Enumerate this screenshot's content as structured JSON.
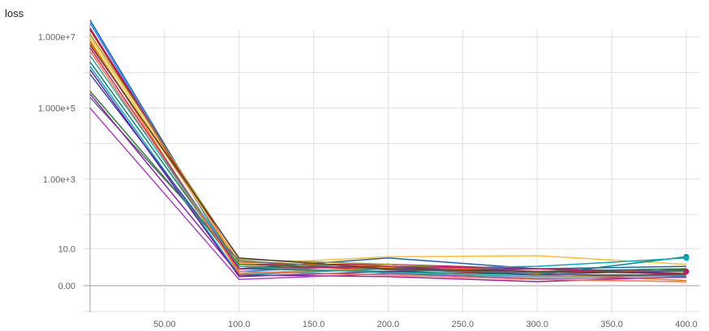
{
  "chart_data": {
    "type": "line",
    "title": "loss",
    "xlabel": "",
    "ylabel": "",
    "xlim": [
      0,
      410
    ],
    "x_ticks": [
      "50.00",
      "100.0",
      "150.0",
      "200.0",
      "250.0",
      "300.0",
      "350.0",
      "400.0"
    ],
    "y_ticks": [
      "1.000e+7",
      "1.000e+5",
      "1.00e+3",
      "10.0",
      "0.00"
    ],
    "y_scale": "symlog",
    "grid": true,
    "x": [
      0,
      100,
      200,
      300,
      400
    ],
    "series": [
      {
        "color": "#1565c0",
        "values": [
          30000000,
          2.0,
          5.0,
          2.0,
          2.5
        ]
      },
      {
        "color": "#1e88e5",
        "values": [
          25000000,
          1.5,
          3.0,
          1.5,
          2.0
        ]
      },
      {
        "color": "#b71c1c",
        "values": [
          16000000,
          2.5,
          2.0,
          1.0,
          1.0
        ]
      },
      {
        "color": "#c2185b",
        "values": [
          18000000,
          3.0,
          3.0,
          2.0,
          1.5
        ]
      },
      {
        "color": "#ef6c00",
        "values": [
          7000000,
          3.5,
          2.5,
          1.5,
          1.5
        ]
      },
      {
        "color": "#fbc02d",
        "values": [
          10000000,
          3.0,
          5.5,
          6.0,
          3.0
        ]
      },
      {
        "color": "#9e9d24",
        "values": [
          12000000,
          4.5,
          3.0,
          1.5,
          2.0
        ]
      },
      {
        "color": "#f57c00",
        "values": [
          8000000,
          1.2,
          2.2,
          1.2,
          0.4
        ]
      },
      {
        "color": "#00897b",
        "values": [
          2000000,
          2.0,
          1.5,
          1.0,
          5.5
        ]
      },
      {
        "color": "#00acc1",
        "values": [
          1500000,
          1.0,
          2.0,
          2.5,
          5.0
        ]
      },
      {
        "color": "#3949ab",
        "values": [
          900000,
          2.0,
          2.5,
          1.0,
          1.8
        ]
      },
      {
        "color": "#6a1b9a",
        "values": [
          1200000,
          0.8,
          1.5,
          2.0,
          1.2
        ]
      },
      {
        "color": "#2e7d32",
        "values": [
          300000,
          3.0,
          2.0,
          1.5,
          2.0
        ]
      },
      {
        "color": "#546e7a",
        "values": [
          200000,
          4.0,
          1.8,
          1.3,
          1.6
        ]
      },
      {
        "color": "#8e24aa",
        "values": [
          250000,
          1.0,
          0.8,
          0.3,
          0.8
        ]
      },
      {
        "color": "#ab47bc",
        "values": [
          100000,
          0.5,
          1.2,
          0.6,
          0.7
        ]
      },
      {
        "color": "#d81b60",
        "values": [
          5000000,
          2.0,
          2.5,
          2.0,
          1.0
        ]
      },
      {
        "color": "#5d4037",
        "values": [
          6000000,
          5.0,
          2.0,
          1.5,
          1.2
        ]
      },
      {
        "color": "#ff7043",
        "values": [
          4000000,
          1.5,
          1.0,
          0.5,
          0.3
        ]
      },
      {
        "color": "#26a69a",
        "values": [
          3000000,
          2.5,
          1.3,
          0.8,
          0.9
        ]
      }
    ]
  }
}
